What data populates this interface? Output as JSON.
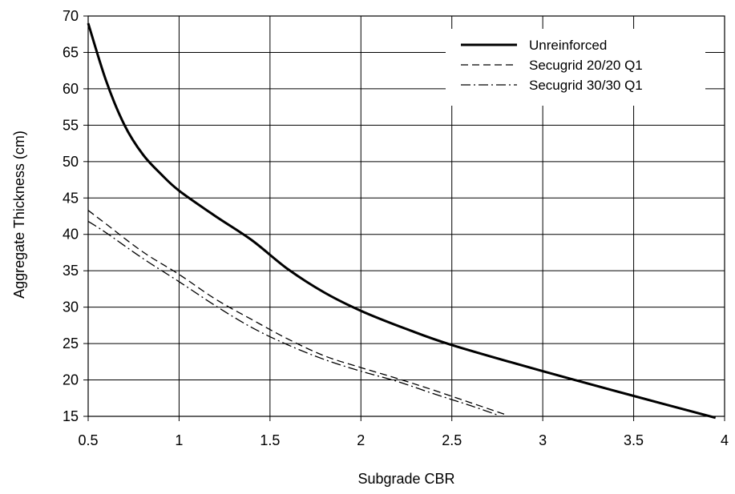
{
  "chart_data": {
    "type": "line",
    "title": "",
    "xlabel": "Subgrade CBR",
    "ylabel": "Aggregate Thickness (cm)",
    "xlim": [
      0.5,
      4
    ],
    "ylim": [
      15,
      70
    ],
    "xticks": [
      "0.5",
      "1",
      "1.5",
      "2",
      "2.5",
      "3",
      "3.5",
      "4"
    ],
    "yticks": [
      "15",
      "20",
      "25",
      "30",
      "35",
      "40",
      "45",
      "50",
      "55",
      "60",
      "65",
      "70"
    ],
    "grid": true,
    "legend_position": "top-right",
    "series": [
      {
        "name": "Unreinforced",
        "style": "solid-thick",
        "color": "#000000",
        "x": [
          0.5,
          0.6,
          0.7,
          0.8,
          0.9,
          1.0,
          1.2,
          1.4,
          1.6,
          1.8,
          2.0,
          2.25,
          2.5,
          3.0,
          3.5,
          3.95
        ],
        "y": [
          69,
          61,
          55,
          51,
          48.3,
          46,
          42.5,
          39.2,
          35.2,
          32,
          29.5,
          27,
          24.8,
          21.2,
          17.8,
          14.8
        ]
      },
      {
        "name": "Secugrid 20/20 Q1",
        "style": "dashed",
        "color": "#000000",
        "x": [
          0.5,
          0.6,
          0.8,
          1.0,
          1.2,
          1.4,
          1.6,
          1.8,
          2.0,
          2.2,
          2.4,
          2.6,
          2.8
        ],
        "y": [
          43.3,
          41.4,
          37.6,
          34.5,
          31.1,
          28.3,
          25.6,
          23.3,
          21.7,
          20.2,
          18.6,
          16.9,
          15.2
        ]
      },
      {
        "name": "Secugrid 30/30 Q1",
        "style": "dash-dot",
        "color": "#000000",
        "x": [
          0.5,
          0.6,
          0.8,
          1.0,
          1.2,
          1.4,
          1.6,
          1.8,
          2.0,
          2.2,
          2.4,
          2.6,
          2.75
        ],
        "y": [
          41.8,
          40.2,
          36.7,
          33.5,
          30.2,
          27.2,
          24.8,
          22.8,
          21.2,
          19.8,
          18.1,
          16.5,
          15.2
        ]
      }
    ]
  }
}
